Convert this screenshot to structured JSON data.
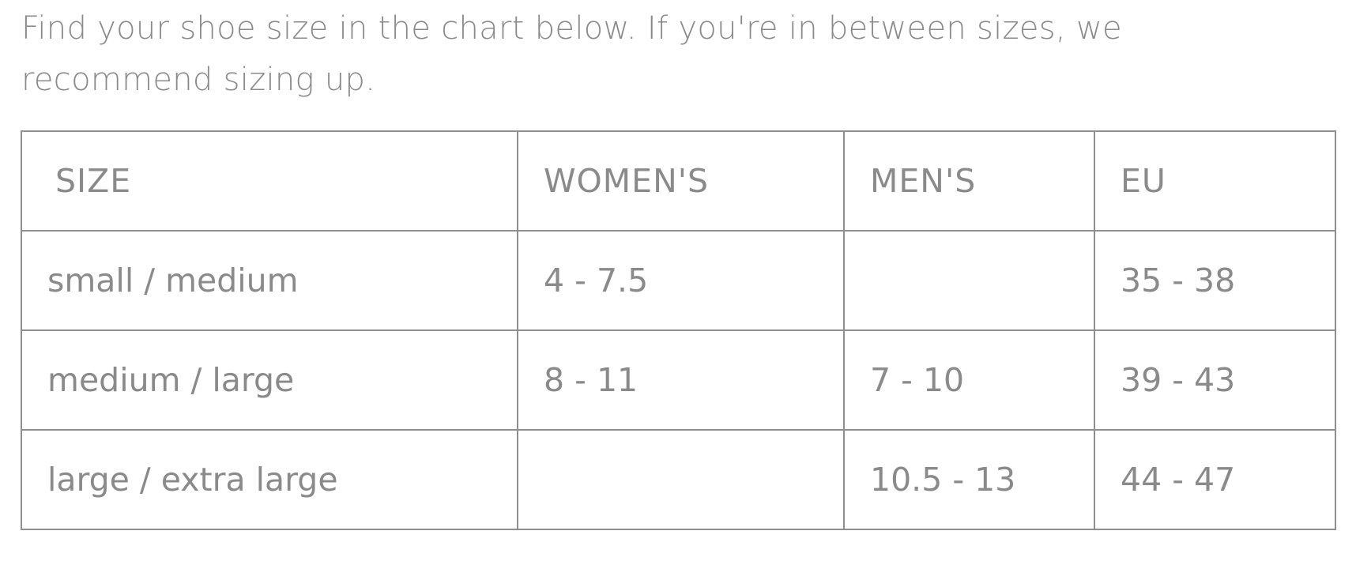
{
  "intro": "Find your shoe size in the chart below. If you're in between sizes, we recommend sizing up.",
  "table": {
    "headers": [
      "SIZE",
      "WOMEN'S",
      "MEN'S",
      "EU"
    ],
    "rows": [
      [
        "small / medium",
        "4 - 7.5",
        "",
        "35 - 38"
      ],
      [
        "medium / large",
        "8 - 11",
        "7 - 10",
        "39 - 43"
      ],
      [
        "large / extra large",
        "",
        "10.5 - 13",
        "44 - 47"
      ]
    ]
  }
}
